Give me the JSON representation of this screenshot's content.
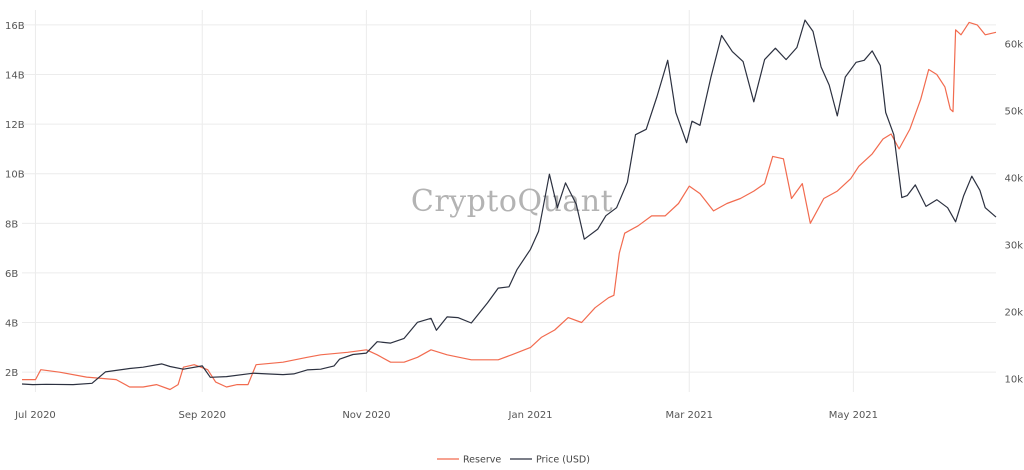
{
  "watermark": "CryptoQuant",
  "chart_data": {
    "type": "line",
    "title": "",
    "xlabel": "",
    "ylabel_left": "",
    "ylabel_right": "",
    "x_axis": {
      "type": "date",
      "range": [
        "2020-06-26",
        "2021-06-23"
      ],
      "ticks": [
        {
          "date": "2020-07-01",
          "label": "Jul 2020"
        },
        {
          "date": "2020-09-01",
          "label": "Sep 2020"
        },
        {
          "date": "2020-11-01",
          "label": "Nov 2020"
        },
        {
          "date": "2021-01-01",
          "label": "Jan 2021"
        },
        {
          "date": "2021-03-01",
          "label": "Mar 2021"
        },
        {
          "date": "2021-05-01",
          "label": "May 2021"
        }
      ]
    },
    "y_left": {
      "range": [
        1.2,
        16.6
      ],
      "ticks": [
        {
          "value": 2,
          "label": "2B"
        },
        {
          "value": 4,
          "label": "4B"
        },
        {
          "value": 6,
          "label": "6B"
        },
        {
          "value": 8,
          "label": "8B"
        },
        {
          "value": 10,
          "label": "10B"
        },
        {
          "value": 12,
          "label": "12B"
        },
        {
          "value": 14,
          "label": "14B"
        },
        {
          "value": 16,
          "label": "16B"
        }
      ]
    },
    "y_right": {
      "range": [
        8000,
        65000
      ],
      "ticks": [
        {
          "value": 10000,
          "label": "10k"
        },
        {
          "value": 20000,
          "label": "20k"
        },
        {
          "value": 30000,
          "label": "30k"
        },
        {
          "value": 40000,
          "label": "40k"
        },
        {
          "value": 50000,
          "label": "50k"
        },
        {
          "value": 60000,
          "label": "60k"
        }
      ]
    },
    "grid": true,
    "legend_position": "bottom-center",
    "series": [
      {
        "name": "Reserve",
        "axis": "left",
        "color": "#f26b4f",
        "points": [
          [
            "2020-06-26",
            1.7
          ],
          [
            "2020-07-01",
            1.7
          ],
          [
            "2020-07-03",
            2.1
          ],
          [
            "2020-07-10",
            2.0
          ],
          [
            "2020-07-20",
            1.8
          ],
          [
            "2020-07-31",
            1.7
          ],
          [
            "2020-08-05",
            1.4
          ],
          [
            "2020-08-10",
            1.4
          ],
          [
            "2020-08-15",
            1.5
          ],
          [
            "2020-08-20",
            1.3
          ],
          [
            "2020-08-23",
            1.5
          ],
          [
            "2020-08-25",
            2.2
          ],
          [
            "2020-08-29",
            2.3
          ],
          [
            "2020-09-03",
            2.1
          ],
          [
            "2020-09-06",
            1.6
          ],
          [
            "2020-09-10",
            1.4
          ],
          [
            "2020-09-14",
            1.5
          ],
          [
            "2020-09-18",
            1.5
          ],
          [
            "2020-09-21",
            2.3
          ],
          [
            "2020-10-01",
            2.4
          ],
          [
            "2020-10-10",
            2.6
          ],
          [
            "2020-10-15",
            2.7
          ],
          [
            "2020-10-25",
            2.8
          ],
          [
            "2020-11-01",
            2.9
          ],
          [
            "2020-11-05",
            2.7
          ],
          [
            "2020-11-10",
            2.4
          ],
          [
            "2020-11-15",
            2.4
          ],
          [
            "2020-11-20",
            2.6
          ],
          [
            "2020-11-25",
            2.9
          ],
          [
            "2020-12-01",
            2.7
          ],
          [
            "2020-12-10",
            2.5
          ],
          [
            "2020-12-20",
            2.5
          ],
          [
            "2020-12-25",
            2.7
          ],
          [
            "2021-01-01",
            3.0
          ],
          [
            "2021-01-05",
            3.4
          ],
          [
            "2021-01-10",
            3.7
          ],
          [
            "2021-01-15",
            4.2
          ],
          [
            "2021-01-20",
            4.0
          ],
          [
            "2021-01-25",
            4.6
          ],
          [
            "2021-01-30",
            5.0
          ],
          [
            "2021-02-01",
            5.1
          ],
          [
            "2021-02-03",
            6.8
          ],
          [
            "2021-02-05",
            7.6
          ],
          [
            "2021-02-10",
            7.9
          ],
          [
            "2021-02-15",
            8.3
          ],
          [
            "2021-02-20",
            8.3
          ],
          [
            "2021-02-25",
            8.8
          ],
          [
            "2021-03-01",
            9.5
          ],
          [
            "2021-03-05",
            9.2
          ],
          [
            "2021-03-10",
            8.5
          ],
          [
            "2021-03-15",
            8.8
          ],
          [
            "2021-03-20",
            9.0
          ],
          [
            "2021-03-25",
            9.3
          ],
          [
            "2021-03-29",
            9.6
          ],
          [
            "2021-04-01",
            10.7
          ],
          [
            "2021-04-05",
            10.6
          ],
          [
            "2021-04-08",
            9.0
          ],
          [
            "2021-04-12",
            9.6
          ],
          [
            "2021-04-15",
            8.0
          ],
          [
            "2021-04-20",
            9.0
          ],
          [
            "2021-04-25",
            9.3
          ],
          [
            "2021-04-30",
            9.8
          ],
          [
            "2021-05-03",
            10.3
          ],
          [
            "2021-05-08",
            10.8
          ],
          [
            "2021-05-12",
            11.4
          ],
          [
            "2021-05-15",
            11.6
          ],
          [
            "2021-05-18",
            11.0
          ],
          [
            "2021-05-22",
            11.8
          ],
          [
            "2021-05-26",
            13.0
          ],
          [
            "2021-05-29",
            14.2
          ],
          [
            "2021-06-01",
            14.0
          ],
          [
            "2021-06-04",
            13.5
          ],
          [
            "2021-06-06",
            12.6
          ],
          [
            "2021-06-07",
            12.5
          ],
          [
            "2021-06-08",
            15.8
          ],
          [
            "2021-06-10",
            15.6
          ],
          [
            "2021-06-13",
            16.1
          ],
          [
            "2021-06-16",
            16.0
          ],
          [
            "2021-06-19",
            15.6
          ],
          [
            "2021-06-23",
            15.7
          ]
        ]
      },
      {
        "name": "Price (USD)",
        "axis": "right",
        "color": "#2c3140",
        "points": [
          [
            "2020-06-26",
            9200
          ],
          [
            "2020-06-30",
            9100
          ],
          [
            "2020-07-05",
            9150
          ],
          [
            "2020-07-15",
            9100
          ],
          [
            "2020-07-22",
            9300
          ],
          [
            "2020-07-27",
            11000
          ],
          [
            "2020-08-05",
            11500
          ],
          [
            "2020-08-10",
            11700
          ],
          [
            "2020-08-17",
            12200
          ],
          [
            "2020-08-20",
            11800
          ],
          [
            "2020-08-25",
            11400
          ],
          [
            "2020-09-01",
            11900
          ],
          [
            "2020-09-04",
            10200
          ],
          [
            "2020-09-10",
            10300
          ],
          [
            "2020-09-20",
            10800
          ],
          [
            "2020-09-25",
            10700
          ],
          [
            "2020-10-01",
            10600
          ],
          [
            "2020-10-05",
            10700
          ],
          [
            "2020-10-10",
            11300
          ],
          [
            "2020-10-15",
            11400
          ],
          [
            "2020-10-20",
            11900
          ],
          [
            "2020-10-22",
            12900
          ],
          [
            "2020-10-27",
            13600
          ],
          [
            "2020-11-01",
            13800
          ],
          [
            "2020-11-05",
            15500
          ],
          [
            "2020-11-10",
            15300
          ],
          [
            "2020-11-15",
            16000
          ],
          [
            "2020-11-20",
            18400
          ],
          [
            "2020-11-25",
            19000
          ],
          [
            "2020-11-27",
            17200
          ],
          [
            "2020-12-01",
            19200
          ],
          [
            "2020-12-05",
            19100
          ],
          [
            "2020-12-10",
            18300
          ],
          [
            "2020-12-16",
            21300
          ],
          [
            "2020-12-20",
            23500
          ],
          [
            "2020-12-24",
            23700
          ],
          [
            "2020-12-27",
            26300
          ],
          [
            "2021-01-01",
            29300
          ],
          [
            "2021-01-04",
            32000
          ],
          [
            "2021-01-08",
            40500
          ],
          [
            "2021-01-11",
            35500
          ],
          [
            "2021-01-14",
            39200
          ],
          [
            "2021-01-18",
            36000
          ],
          [
            "2021-01-21",
            30800
          ],
          [
            "2021-01-26",
            32300
          ],
          [
            "2021-01-29",
            34300
          ],
          [
            "2021-02-02",
            35500
          ],
          [
            "2021-02-06",
            39300
          ],
          [
            "2021-02-09",
            46400
          ],
          [
            "2021-02-13",
            47200
          ],
          [
            "2021-02-17",
            52100
          ],
          [
            "2021-02-21",
            57500
          ],
          [
            "2021-02-24",
            49700
          ],
          [
            "2021-02-28",
            45200
          ],
          [
            "2021-03-02",
            48400
          ],
          [
            "2021-03-05",
            47800
          ],
          [
            "2021-03-09",
            54900
          ],
          [
            "2021-03-13",
            61200
          ],
          [
            "2021-03-17",
            58800
          ],
          [
            "2021-03-21",
            57300
          ],
          [
            "2021-03-25",
            51300
          ],
          [
            "2021-03-29",
            57600
          ],
          [
            "2021-04-02",
            59300
          ],
          [
            "2021-04-06",
            57600
          ],
          [
            "2021-04-10",
            59400
          ],
          [
            "2021-04-13",
            63500
          ],
          [
            "2021-04-16",
            61800
          ],
          [
            "2021-04-19",
            56500
          ],
          [
            "2021-04-22",
            53800
          ],
          [
            "2021-04-25",
            49200
          ],
          [
            "2021-04-28",
            55000
          ],
          [
            "2021-05-02",
            57200
          ],
          [
            "2021-05-05",
            57500
          ],
          [
            "2021-05-08",
            58900
          ],
          [
            "2021-05-11",
            56700
          ],
          [
            "2021-05-13",
            49700
          ],
          [
            "2021-05-16",
            46400
          ],
          [
            "2021-05-19",
            37000
          ],
          [
            "2021-05-21",
            37300
          ],
          [
            "2021-05-24",
            38900
          ],
          [
            "2021-05-28",
            35700
          ],
          [
            "2021-06-01",
            36700
          ],
          [
            "2021-06-05",
            35500
          ],
          [
            "2021-06-08",
            33400
          ],
          [
            "2021-06-11",
            37300
          ],
          [
            "2021-06-14",
            40200
          ],
          [
            "2021-06-17",
            38100
          ],
          [
            "2021-06-19",
            35500
          ],
          [
            "2021-06-23",
            34100
          ]
        ]
      }
    ]
  }
}
